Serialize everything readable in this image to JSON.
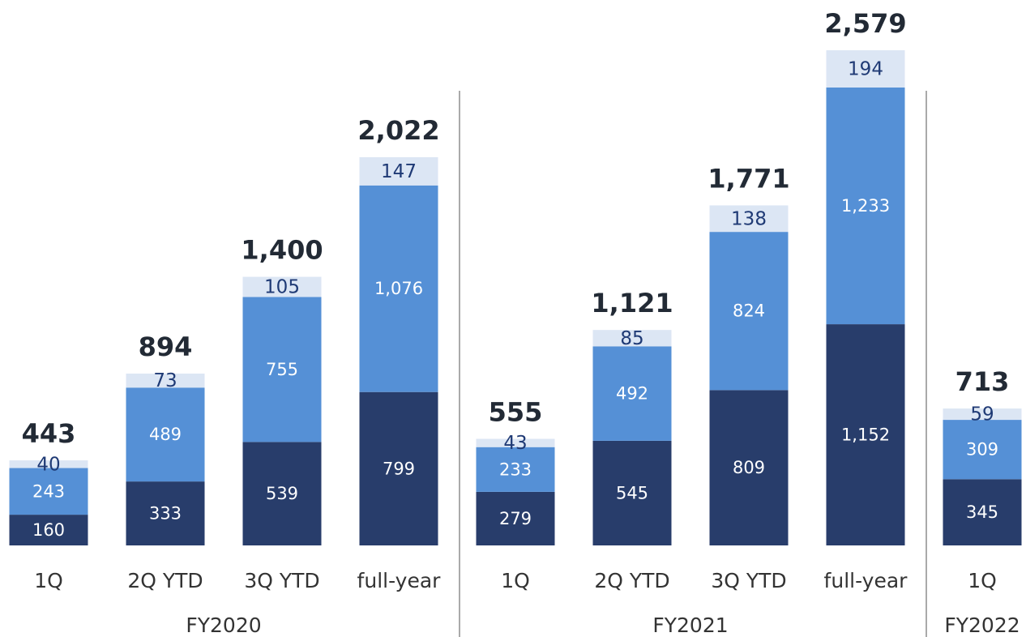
{
  "chart_data": {
    "type": "stacked-bar",
    "categories": [
      "1Q",
      "2Q YTD",
      "3Q YTD",
      "full-year",
      "1Q",
      "2Q YTD",
      "3Q YTD",
      "full-year",
      "1Q"
    ],
    "groups": [
      {
        "label": "FY2020",
        "span": 4
      },
      {
        "label": "FY2021",
        "span": 4
      },
      {
        "label": "FY2022",
        "span": 1
      }
    ],
    "series": [
      {
        "color": "#283d6b",
        "label_color": "#ffffff",
        "values": [
          160,
          333,
          539,
          799,
          279,
          545,
          809,
          1152,
          345
        ],
        "value_labels": [
          "160",
          "333",
          "539",
          "799",
          "279",
          "545",
          "809",
          "1,152",
          "345"
        ]
      },
      {
        "color": "#5590d6",
        "label_color": "#ffffff",
        "values": [
          243,
          489,
          755,
          1076,
          233,
          492,
          824,
          1233,
          309
        ],
        "value_labels": [
          "243",
          "489",
          "755",
          "1,076",
          "233",
          "492",
          "824",
          "1,233",
          "309"
        ]
      },
      {
        "color": "#dce6f4",
        "label_color": "#1f3a75",
        "values": [
          40,
          73,
          105,
          147,
          43,
          85,
          138,
          194,
          59
        ],
        "value_labels": [
          "40",
          "73",
          "105",
          "147",
          "43",
          "85",
          "138",
          "194",
          "59"
        ]
      }
    ],
    "totals": [
      443,
      894,
      1400,
      2022,
      555,
      1121,
      1771,
      2579,
      713
    ],
    "total_labels": [
      "443",
      "894",
      "1,400",
      "2,022",
      "555",
      "1,121",
      "1,771",
      "2,579",
      "713"
    ]
  }
}
